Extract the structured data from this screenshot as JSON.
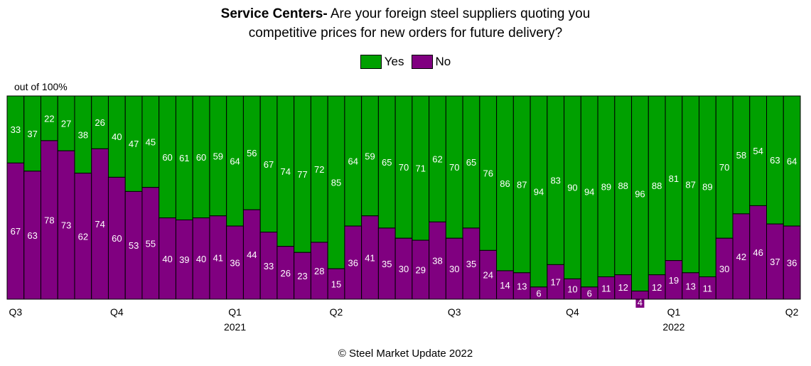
{
  "chart_data": {
    "type": "bar",
    "stacked": true,
    "title_bold": "Service Centers-",
    "title_rest": "Are your foreign steel suppliers quoting you",
    "title_line2": "competitive prices for new orders for future delivery?",
    "ylabel": "out of 100%",
    "ylim": [
      0,
      100
    ],
    "legend_position": "top-center",
    "series": [
      {
        "name": "Yes",
        "color": "#00A000",
        "values": [
          33,
          37,
          22,
          27,
          38,
          26,
          40,
          47,
          45,
          60,
          61,
          60,
          59,
          64,
          56,
          67,
          74,
          77,
          72,
          85,
          64,
          59,
          65,
          70,
          71,
          62,
          70,
          65,
          76,
          86,
          87,
          94,
          83,
          90,
          94,
          89,
          88,
          96,
          88,
          81,
          87,
          89,
          70,
          58,
          54,
          63,
          64
        ]
      },
      {
        "name": "No",
        "color": "#800080",
        "values": [
          67,
          63,
          78,
          73,
          62,
          74,
          60,
          53,
          55,
          40,
          39,
          40,
          41,
          36,
          44,
          33,
          26,
          23,
          28,
          15,
          36,
          41,
          35,
          30,
          29,
          38,
          30,
          35,
          24,
          14,
          13,
          6,
          17,
          10,
          6,
          11,
          12,
          4,
          12,
          19,
          13,
          11,
          30,
          42,
          46,
          37,
          36
        ]
      }
    ],
    "x_ticks": [
      {
        "index": 0,
        "label": "Q3",
        "year": ""
      },
      {
        "index": 6,
        "label": "Q4",
        "year": ""
      },
      {
        "index": 13,
        "label": "Q1",
        "year": "2021"
      },
      {
        "index": 19,
        "label": "Q2",
        "year": ""
      },
      {
        "index": 26,
        "label": "Q3",
        "year": ""
      },
      {
        "index": 33,
        "label": "Q4",
        "year": ""
      },
      {
        "index": 39,
        "label": "Q1",
        "year": "2022"
      },
      {
        "index": 46,
        "label": "Q2",
        "year": ""
      }
    ]
  },
  "footer": "© Steel Market Update 2022"
}
